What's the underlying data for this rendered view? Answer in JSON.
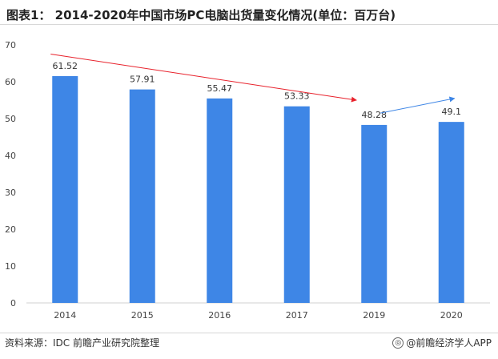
{
  "header": {
    "title": "图表1：  2014-2020年中国市场PC电脑出货量变化情况(单位：百万台)"
  },
  "footer": {
    "source": "资料来源：IDC 前瞻产业研究院整理",
    "brand": "@前瞻经济学人APP"
  },
  "colors": {
    "bar": "#3e86e6",
    "red_arrow": "#e8212b",
    "blue_arrow": "#3e86e6"
  },
  "chart_data": {
    "type": "bar",
    "categories": [
      "2014",
      "2015",
      "2016",
      "2017",
      "2019",
      "2020"
    ],
    "values": [
      61.52,
      57.91,
      55.47,
      53.33,
      48.28,
      49.1
    ],
    "data_labels": [
      "61.52",
      "57.91",
      "55.47",
      "53.33",
      "48.28",
      "49.1"
    ],
    "ylim": [
      0,
      70
    ],
    "yticks": [
      0,
      10,
      20,
      30,
      40,
      50,
      60,
      70
    ],
    "grid": false,
    "annotations": [
      {
        "type": "arrow",
        "color": "red",
        "from": {
          "x": "2014",
          "y": 67.5
        },
        "to": {
          "x": "2019",
          "y": 55
        }
      },
      {
        "type": "arrow",
        "color": "blue",
        "from": {
          "x": "2019",
          "y": 51.5
        },
        "to": {
          "x": "2020",
          "y": 55.5
        }
      }
    ]
  }
}
